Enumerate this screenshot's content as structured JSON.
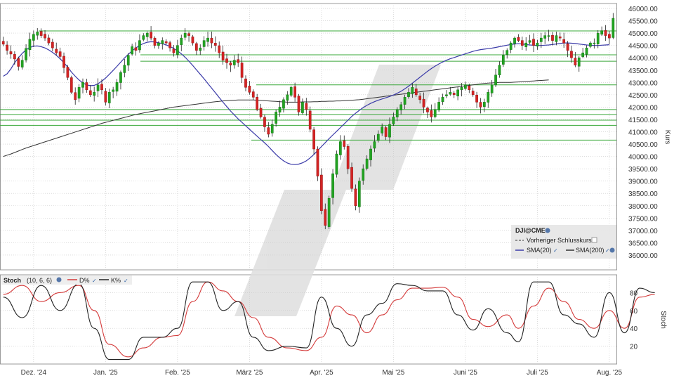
{
  "colors": {
    "up": "#22a322",
    "down": "#d42424",
    "wick": "#222222",
    "sma20": "#3a3aa8",
    "sma200": "#333333",
    "hline": "#3aa83a",
    "stoch_d": "#d43a3a",
    "stoch_k": "#222222",
    "grid": "#c8c8c8",
    "watermark": "#dedede"
  },
  "chart_data": [
    {
      "type": "candlestick",
      "ylabel": "Kurs",
      "ylim": [
        35400,
        46200
      ],
      "ytick_labels": [
        "36000.00",
        "36500.00",
        "37000.00",
        "37500.00",
        "38000.00",
        "38500.00",
        "39000.00",
        "39500.00",
        "40000.00",
        "40500.00",
        "41000.00",
        "41500.00",
        "42000.00",
        "42500.00",
        "43000.00",
        "43500.00",
        "44000.00",
        "44500.00",
        "45000.00",
        "45500.00",
        "46000.00"
      ],
      "xtick_labels": [
        "Dez. '24",
        "Jan. '25",
        "Feb. '25",
        "März '25",
        "Apr. '25",
        "Mai '25",
        "Juni '25",
        "Juli '25",
        "Aug. '25"
      ],
      "xtick_positions": [
        8,
        27,
        46,
        65,
        84,
        103,
        122,
        141,
        160
      ],
      "grid": true,
      "legend": {
        "placement": "bottom-right",
        "title": "DJI@CME",
        "items": [
          {
            "label": "Vorheriger Schlusskurs"
          },
          {
            "label": "SMA(20)"
          },
          {
            "label": "SMA(200)"
          }
        ]
      },
      "horizontal_levels": [
        45090,
        44120,
        43860,
        42900,
        41900,
        41700,
        41470,
        41260,
        40660
      ],
      "candles_close": [
        44550,
        44300,
        44150,
        43950,
        43650,
        43900,
        44380,
        44750,
        44950,
        45050,
        44900,
        44800,
        44600,
        44400,
        44200,
        44050,
        43600,
        43200,
        42600,
        42300,
        42800,
        43000,
        42700,
        42500,
        42600,
        42900,
        42700,
        42200,
        42600,
        42700,
        43000,
        43400,
        43700,
        44100,
        44450,
        44300,
        44700,
        44900,
        45000,
        44800,
        44500,
        44600,
        44700,
        44600,
        44400,
        44200,
        44500,
        44800,
        45000,
        44900,
        44600,
        44300,
        44400,
        44700,
        44800,
        44600,
        44500,
        44200,
        43900,
        43800,
        43700,
        43900,
        43800,
        43200,
        42800,
        42600,
        42400,
        41900,
        41600,
        41200,
        40900,
        41300,
        41800,
        42000,
        42300,
        42500,
        42800,
        42400,
        41800,
        42200,
        41900,
        41100,
        40300,
        39200,
        37800,
        37200,
        38300,
        39300,
        40100,
        40600,
        40400,
        39500,
        38700,
        38000,
        39000,
        39500,
        39900,
        40300,
        40600,
        40900,
        41200,
        40800,
        41300,
        41600,
        41900,
        42100,
        42400,
        42600,
        42800,
        42500,
        42300,
        42000,
        41800,
        41600,
        41900,
        42200,
        42400,
        42500,
        42600,
        42500,
        42700,
        42800,
        42900,
        42700,
        42500,
        42200,
        42000,
        42200,
        42600,
        42900,
        43300,
        43700,
        44100,
        44300,
        44600,
        44800,
        44700,
        44500,
        44600,
        44700,
        44500,
        44600,
        44800,
        44900,
        44900,
        44700,
        44900,
        44800,
        44600,
        44300,
        44000,
        43700,
        44000,
        44200,
        44400,
        44600,
        44600,
        45000,
        45100,
        44900,
        44800,
        45600
      ],
      "sma20": [
        43250,
        43350,
        43550,
        43800,
        44000,
        44180,
        44320,
        44420,
        44470,
        44480,
        44450,
        44400,
        44320,
        44220,
        44100,
        43960,
        43800,
        43620,
        43420,
        43250,
        43100,
        42980,
        42900,
        42870,
        42880,
        42950,
        43050,
        43180,
        43330,
        43490,
        43650,
        43820,
        43990,
        44140,
        44280,
        44400,
        44500,
        44580,
        44630,
        44650,
        44640,
        44610,
        44570,
        44520,
        44460,
        44380,
        44280,
        44160,
        44020,
        43860,
        43690,
        43510,
        43330,
        43150,
        42960,
        42770,
        42580,
        42390,
        42200,
        42020,
        41840,
        41680,
        41520,
        41380,
        41240,
        41100,
        40960,
        40820,
        40680,
        40550,
        40400,
        40240,
        40080,
        39940,
        39820,
        39730,
        39680,
        39670,
        39690,
        39740,
        39820,
        39940,
        40080,
        40240,
        40400,
        40560,
        40720,
        40870,
        41020,
        41170,
        41320,
        41470,
        41620,
        41750,
        41870,
        41980,
        42070,
        42150,
        42220,
        42280,
        42330,
        42380,
        42430,
        42490,
        42560,
        42640,
        42740,
        42850,
        42970,
        43090,
        43210,
        43330,
        43450,
        43560,
        43660,
        43750,
        43830,
        43900,
        43960,
        44010,
        44060,
        44110,
        44160,
        44210,
        44260,
        44300,
        44330,
        44350,
        44370,
        44390,
        44420,
        44450,
        44480,
        44510,
        44540,
        44560,
        44570,
        44560,
        44540,
        44520,
        44510,
        44500,
        44500,
        44510,
        44520,
        44540,
        44560,
        44580,
        44600,
        44600,
        44590,
        44580,
        44560,
        44540,
        44520,
        44510,
        44500,
        44500,
        44510,
        44520,
        44530
      ],
      "sma200": [
        40000,
        40050,
        40100,
        40160,
        40220,
        40280,
        40340,
        40390,
        40440,
        40490,
        40540,
        40590,
        40640,
        40690,
        40740,
        40790,
        40840,
        40890,
        40940,
        40990,
        41040,
        41090,
        41140,
        41190,
        41240,
        41290,
        41340,
        41380,
        41420,
        41460,
        41500,
        41540,
        41580,
        41620,
        41660,
        41700,
        41730,
        41760,
        41790,
        41820,
        41850,
        41880,
        41910,
        41940,
        41970,
        42000,
        42020,
        42040,
        42060,
        42080,
        42100,
        42120,
        42140,
        42160,
        42180,
        42200,
        42220,
        42230,
        42250,
        42260,
        42270,
        42280,
        42290,
        42290,
        42290,
        42290,
        42290,
        42280,
        42270,
        42260,
        42250,
        42240,
        42230,
        42220,
        42210,
        42200,
        42200,
        42200,
        42200,
        42210,
        42210,
        42210,
        42220,
        42220,
        42230,
        42230,
        42240,
        42240,
        42250,
        42250,
        42260,
        42270,
        42280,
        42290,
        42300,
        42320,
        42340,
        42360,
        42380,
        42400,
        42420,
        42440,
        42460,
        42480,
        42500,
        42520,
        42540,
        42560,
        42580,
        42600,
        42620,
        42640,
        42660,
        42680,
        42700,
        42720,
        42740,
        42760,
        42780,
        42800,
        42820,
        42840,
        42860,
        42880,
        42900,
        42920,
        42940,
        42960,
        42970,
        42980,
        42990,
        43000,
        43000,
        43000,
        43000,
        43010,
        43020,
        43030,
        43040,
        43050,
        43060,
        43070,
        43080,
        43090,
        43100
      ]
    },
    {
      "type": "line",
      "title": "Stoch",
      "subtitle": "(10, 6, 6)",
      "ylabel": "Stoch",
      "ylim": [
        0,
        100
      ],
      "ytick_labels": [
        "20",
        "40",
        "60",
        "80"
      ],
      "series": [
        {
          "name": "D%",
          "points": [
            [
              0,
              78
            ],
            [
              5,
              88
            ],
            [
              10,
              70
            ],
            [
              15,
              80
            ],
            [
              20,
              88
            ],
            [
              24,
              60
            ],
            [
              28,
              22
            ],
            [
              33,
              8
            ],
            [
              37,
              18
            ],
            [
              42,
              30
            ],
            [
              46,
              32
            ],
            [
              50,
              70
            ],
            [
              54,
              92
            ],
            [
              58,
              82
            ],
            [
              62,
              70
            ],
            [
              66,
              52
            ],
            [
              70,
              30
            ],
            [
              75,
              18
            ],
            [
              80,
              15
            ],
            [
              84,
              30
            ],
            [
              88,
              65
            ],
            [
              92,
              55
            ],
            [
              96,
              35
            ],
            [
              100,
              55
            ],
            [
              104,
              72
            ],
            [
              108,
              85
            ],
            [
              112,
              85
            ],
            [
              116,
              86
            ],
            [
              120,
              75
            ],
            [
              124,
              50
            ],
            [
              128,
              42
            ],
            [
              133,
              55
            ],
            [
              136,
              40
            ],
            [
              140,
              65
            ],
            [
              144,
              85
            ],
            [
              148,
              70
            ],
            [
              152,
              50
            ],
            [
              156,
              40
            ],
            [
              160,
              60
            ],
            [
              164,
              40
            ],
            [
              168,
              75
            ],
            [
              172,
              78
            ]
          ]
        },
        {
          "name": "K%",
          "points": [
            [
              0,
              75
            ],
            [
              5,
              52
            ],
            [
              10,
              88
            ],
            [
              15,
              60
            ],
            [
              20,
              90
            ],
            [
              24,
              40
            ],
            [
              28,
              5
            ],
            [
              33,
              5
            ],
            [
              37,
              30
            ],
            [
              42,
              30
            ],
            [
              46,
              40
            ],
            [
              50,
              92
            ],
            [
              54,
              92
            ],
            [
              58,
              60
            ],
            [
              62,
              70
            ],
            [
              66,
              30
            ],
            [
              70,
              15
            ],
            [
              75,
              20
            ],
            [
              80,
              18
            ],
            [
              84,
              75
            ],
            [
              88,
              40
            ],
            [
              92,
              20
            ],
            [
              96,
              55
            ],
            [
              100,
              68
            ],
            [
              104,
              90
            ],
            [
              108,
              88
            ],
            [
              112,
              82
            ],
            [
              116,
              82
            ],
            [
              120,
              55
            ],
            [
              124,
              38
            ],
            [
              128,
              62
            ],
            [
              133,
              35
            ],
            [
              136,
              25
            ],
            [
              140,
              92
            ],
            [
              144,
              92
            ],
            [
              148,
              55
            ],
            [
              152,
              45
            ],
            [
              156,
              30
            ],
            [
              160,
              80
            ],
            [
              164,
              35
            ],
            [
              168,
              85
            ],
            [
              172,
              80
            ]
          ]
        }
      ]
    }
  ]
}
